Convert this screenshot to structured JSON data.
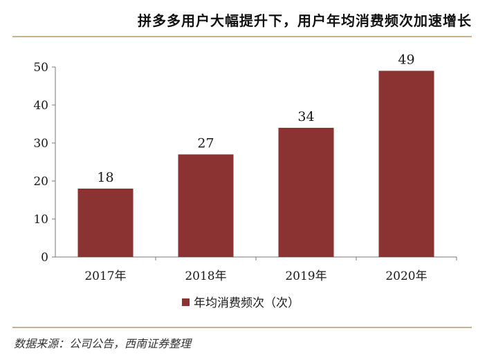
{
  "header": {
    "title": "拼多多用户大幅提升下，用户年均消费频次加速增长"
  },
  "footer": {
    "source": "数据来源：公司公告，西南证券整理"
  },
  "colors": {
    "bar": "#8b3232",
    "rule": "#c5b48a"
  },
  "chart_data": {
    "type": "bar",
    "categories": [
      "2017年",
      "2018年",
      "2019年",
      "2020年"
    ],
    "series": [
      {
        "name": "年均消费频次（次）",
        "values": [
          18,
          27,
          34,
          49
        ]
      }
    ],
    "data_labels": [
      "18",
      "27",
      "34",
      "49"
    ],
    "ylim": [
      0,
      50
    ],
    "yticks": [
      0,
      10,
      20,
      30,
      40,
      50
    ],
    "grid": false,
    "legend_position": "bottom"
  }
}
